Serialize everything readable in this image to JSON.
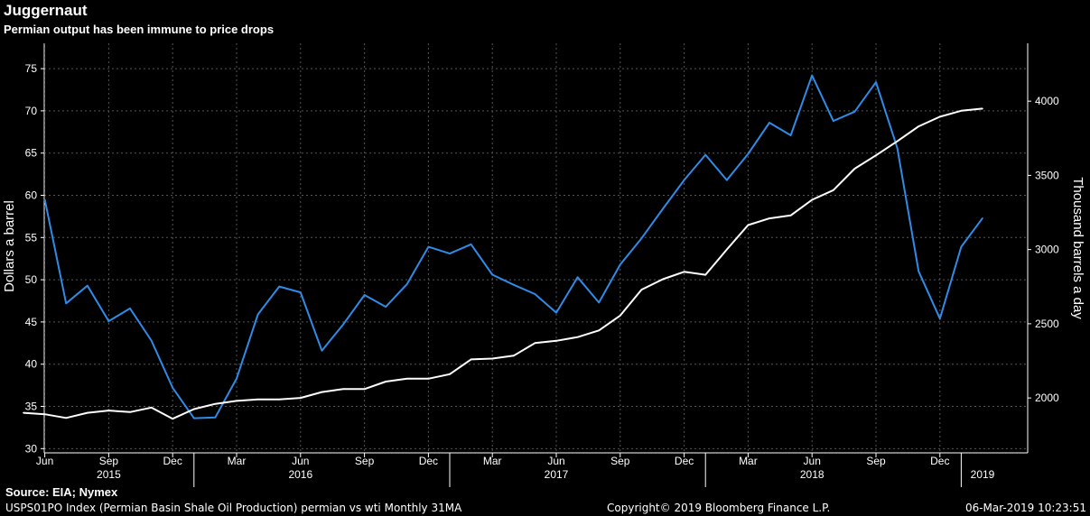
{
  "title": "Juggernaut",
  "subtitle": "Permian output has been immune to price drops",
  "source": "Source: EIA; Nymex",
  "footer": {
    "left": "USPS01PO Index (Permian Basin Shale Oil Production) permian vs wti  Monthly 31MA",
    "center": "Copyright© 2019 Bloomberg Finance L.P.",
    "right": "06-Mar-2019 10:23:51"
  },
  "colors": {
    "background": "#000000",
    "price_line": "#2f8be6",
    "output_line": "#ffffff",
    "grid": "#555555"
  },
  "chart_data": {
    "type": "line",
    "title": "Juggernaut",
    "subtitle": "Permian output has been immune to price drops",
    "grid": true,
    "x": [
      "2015-05",
      "2015-06",
      "2015-07",
      "2015-08",
      "2015-09",
      "2015-10",
      "2015-11",
      "2015-12",
      "2016-01",
      "2016-02",
      "2016-03",
      "2016-04",
      "2016-05",
      "2016-06",
      "2016-07",
      "2016-08",
      "2016-09",
      "2016-10",
      "2016-11",
      "2016-12",
      "2017-01",
      "2017-02",
      "2017-03",
      "2017-04",
      "2017-05",
      "2017-06",
      "2017-07",
      "2017-08",
      "2017-09",
      "2017-10",
      "2017-11",
      "2017-12",
      "2018-01",
      "2018-02",
      "2018-03",
      "2018-04",
      "2018-05",
      "2018-06",
      "2018-07",
      "2018-08",
      "2018-09",
      "2018-10",
      "2018-11",
      "2018-12",
      "2019-01",
      "2019-02"
    ],
    "x_tick_labels": [
      "Jun",
      "Sep",
      "Dec",
      "Mar",
      "Jun",
      "Sep",
      "Dec",
      "Mar",
      "Jun",
      "Sep",
      "Dec",
      "Mar",
      "Jun",
      "Sep",
      "Dec"
    ],
    "x_tick_months": [
      "2015-06",
      "2015-09",
      "2015-12",
      "2016-03",
      "2016-06",
      "2016-09",
      "2016-12",
      "2017-03",
      "2017-06",
      "2017-09",
      "2017-12",
      "2018-03",
      "2018-06",
      "2018-09",
      "2018-12"
    ],
    "x_year_labels": [
      "2015",
      "2016",
      "2017",
      "2018",
      "2019"
    ],
    "x_year_months": [
      "2015-09",
      "2016-06",
      "2017-06",
      "2018-06",
      "2019-02"
    ],
    "y_left": {
      "label": "Dollars a barrel",
      "ylim": [
        29.5,
        78
      ],
      "ticks": [
        30,
        35,
        40,
        45,
        50,
        55,
        60,
        65,
        70,
        75
      ]
    },
    "y_right": {
      "label": "Thousand barrels a day",
      "ylim": [
        1630,
        4390
      ],
      "ticks": [
        2000,
        2500,
        3000,
        3500,
        4000
      ]
    },
    "series": [
      {
        "axis": "left",
        "values": [
          null,
          59.5,
          47.2,
          49.3,
          45.1,
          46.6,
          42.8,
          37.2,
          33.6,
          33.7,
          38.3,
          45.9,
          49.2,
          48.5,
          41.6,
          44.7,
          48.2,
          46.8,
          49.5,
          53.9,
          53.1,
          54.2,
          50.6,
          49.4,
          48.3,
          46.1,
          50.3,
          47.3,
          51.8,
          54.9,
          58.4,
          61.8,
          64.8,
          61.8,
          64.9,
          68.6,
          67.1,
          74.2,
          68.8,
          69.9,
          73.4,
          65.6,
          51.0,
          45.4,
          53.9,
          57.3
        ]
      },
      {
        "axis": "right",
        "values": [
          1900,
          1890,
          1865,
          1900,
          1915,
          1905,
          1935,
          1860,
          1925,
          1960,
          1980,
          1990,
          1990,
          2000,
          2040,
          2060,
          2060,
          2110,
          2130,
          2130,
          2160,
          2260,
          2265,
          2285,
          2370,
          2385,
          2410,
          2455,
          2555,
          2730,
          2800,
          2850,
          2830,
          3000,
          3165,
          3210,
          3230,
          3335,
          3400,
          3545,
          3635,
          3730,
          3830,
          3895,
          3935,
          3950
        ]
      }
    ]
  }
}
